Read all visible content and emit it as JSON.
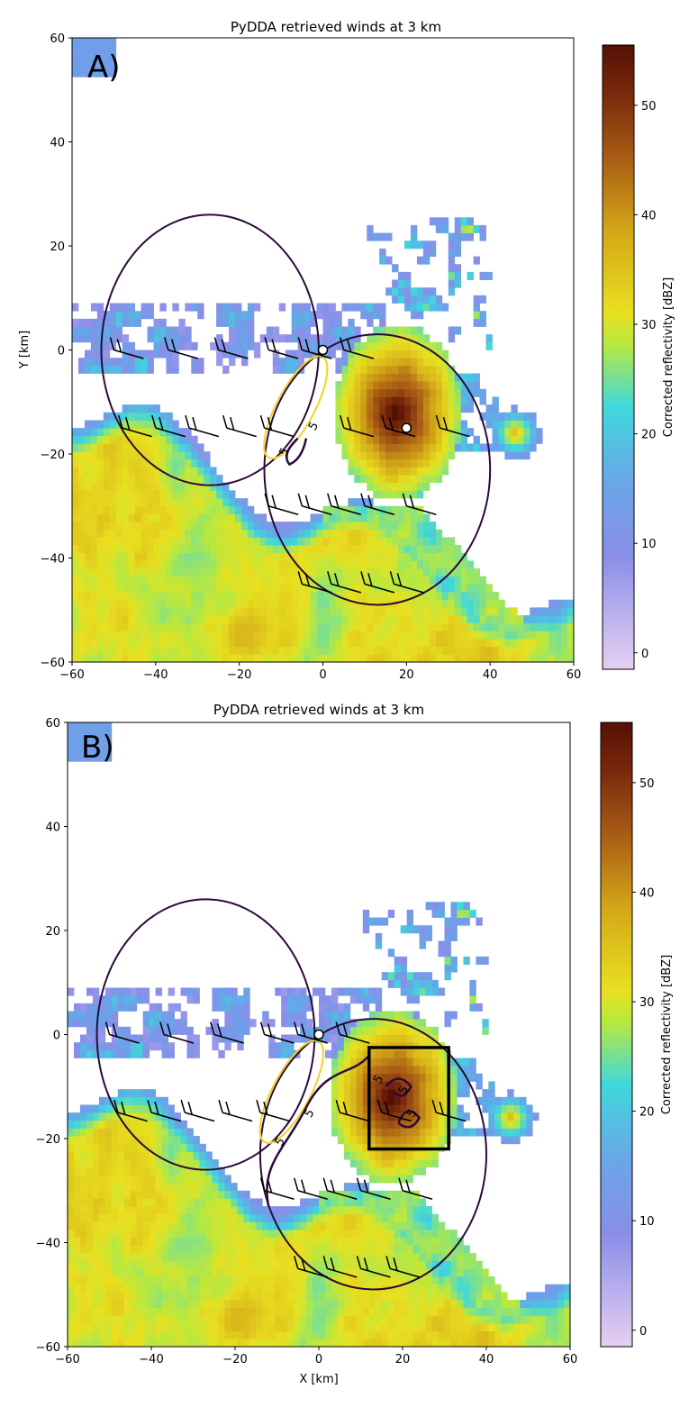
{
  "chart_data": [
    {
      "type": "heatmap",
      "panel_label": "A)",
      "title": "PyDDA retrieved winds at 3 km",
      "xlabel": "",
      "ylabel": "Y [km]",
      "xlim": [
        -60,
        60
      ],
      "ylim": [
        -60,
        60
      ],
      "xticks": [
        "−60",
        "−40",
        "−20",
        "0",
        "20",
        "40",
        "60"
      ],
      "yticks": [
        "−60",
        "−40",
        "−20",
        "0",
        "20",
        "40",
        "60"
      ],
      "colorbar": {
        "label": "Corrected reflectivity [dBZ]",
        "range": [
          -1.5,
          55.5
        ],
        "ticks": [
          "0",
          "10",
          "20",
          "30",
          "40",
          "50"
        ]
      },
      "radar_locations": [
        [
          0,
          0
        ],
        [
          20,
          -15
        ]
      ],
      "coverage_lobes": [
        {
          "center": [
            -27,
            0
          ],
          "rx": 26,
          "ry": 26
        },
        {
          "center": [
            13,
            -23
          ],
          "rx": 27,
          "ry": 26
        }
      ],
      "contour_labels": [
        "5",
        "5"
      ],
      "highlight_box": null
    },
    {
      "type": "heatmap",
      "panel_label": "B)",
      "title": "PyDDA retrieved winds at 3 km",
      "xlabel": "X [km]",
      "ylabel": "",
      "xlim": [
        -60,
        60
      ],
      "ylim": [
        -60,
        60
      ],
      "xticks": [
        "−60",
        "−40",
        "−20",
        "0",
        "20",
        "40",
        "60"
      ],
      "yticks": [
        "−60",
        "−40",
        "−20",
        "0",
        "20",
        "40",
        "60"
      ],
      "colorbar": {
        "label": "Corrected reflectivity [dBZ]",
        "range": [
          -1.5,
          55.5
        ],
        "ticks": [
          "0",
          "10",
          "20",
          "30",
          "40",
          "50"
        ]
      },
      "radar_locations": [
        [
          0,
          0
        ]
      ],
      "coverage_lobes": [
        {
          "center": [
            -27,
            0
          ],
          "rx": 26,
          "ry": 26
        },
        {
          "center": [
            13,
            -23
          ],
          "rx": 27,
          "ry": 26
        }
      ],
      "contour_labels": [
        "5",
        "5",
        "5",
        "5",
        "5"
      ],
      "highlight_box": {
        "x": [
          12,
          31
        ],
        "y": [
          -22,
          -2.5
        ]
      }
    }
  ],
  "colors": {
    "colormap": [
      "#e6d0f2",
      "#8088e6",
      "#5fa8e8",
      "#3fd8dc",
      "#6fe08a",
      "#e8e020",
      "#d8b01a",
      "#b87818",
      "#8a3a10",
      "#5a1408"
    ],
    "lobe": "#2c0a3a",
    "yellow_contour": "#f2d22a",
    "barbs": "#000000"
  }
}
